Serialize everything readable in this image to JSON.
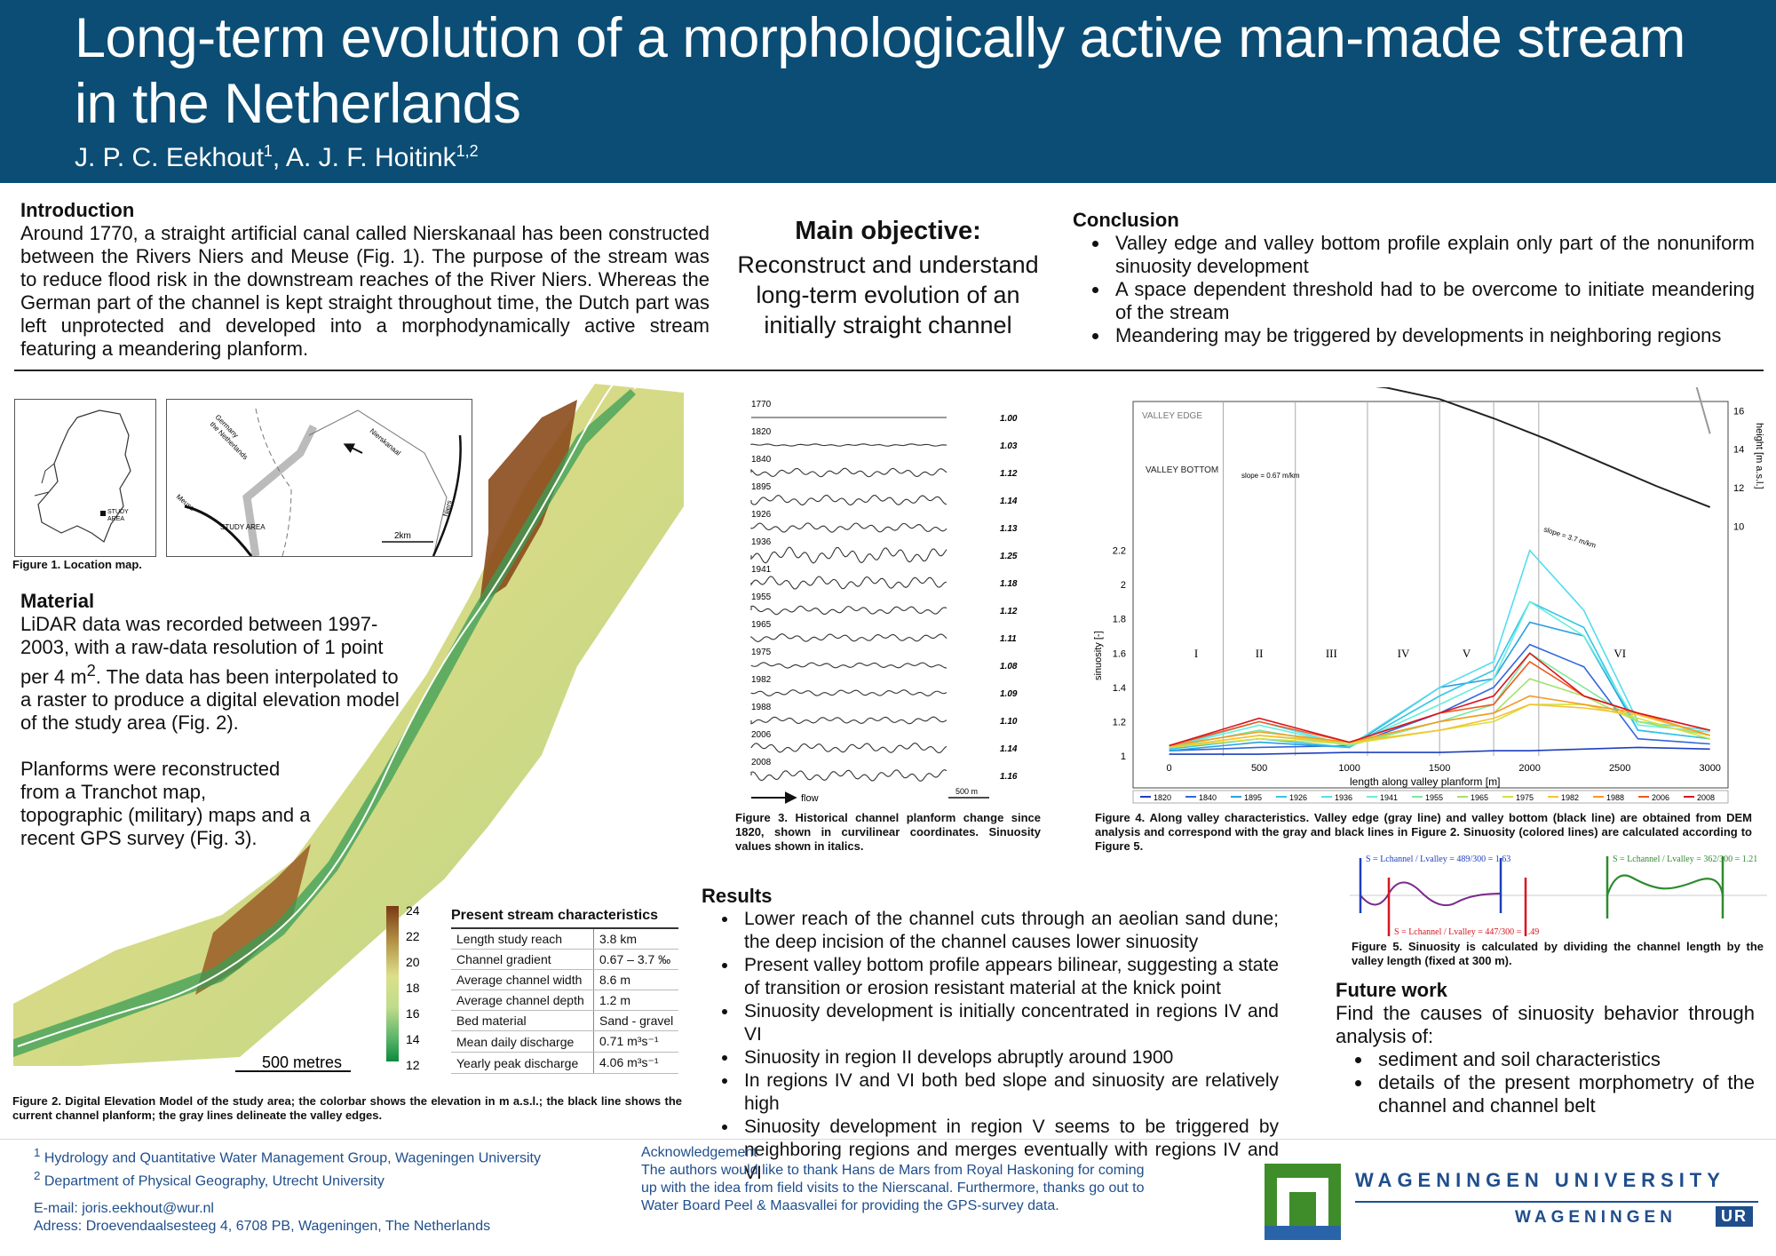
{
  "header": {
    "title_line1": "Long-term evolution of a morphologically active man-made stream",
    "title_line2": "in the Netherlands",
    "author1": "J. P. C. Eekhout",
    "author1_sup": "1",
    "author2": ", A. J. F. Hoitink",
    "author2_sup": "1,2",
    "bg_color": "#0b4d74"
  },
  "introduction": {
    "heading": "Introduction",
    "text": "Around 1770, a straight artificial canal called Nierskanaal has been constructed between the Rivers Niers and Meuse (Fig. 1). The purpose of the stream was to reduce flood risk in the downstream reaches of the River Niers. Whereas the German part of the channel is kept straight throughout time, the Dutch part was left unprotected and developed into a morphodynamically active stream featuring a meandering planform."
  },
  "objective": {
    "heading": "Main objective:",
    "line1": "Reconstruct and understand",
    "line2": "long-term evolution of an",
    "line3": "initially straight channel"
  },
  "conclusion": {
    "heading": "Conclusion",
    "items": [
      "Valley edge and valley bottom profile explain only part of the nonuniform sinuosity development",
      "A space dependent threshold had to be overcome to initiate meandering of the stream",
      "Meandering may be triggered by developments in neighboring regions"
    ]
  },
  "figure1": {
    "caption": "Figure 1. Location map.",
    "study_area": "STUDY AREA",
    "study_area_short": "STUDY",
    "study_area_short2": "AREA",
    "germany": "Germany",
    "netherlands": "the Netherlands",
    "meuse": "Meuse",
    "nierskanaal": "Nierskanaal",
    "niers": "Niers",
    "scale": "2km"
  },
  "material": {
    "heading": "Material",
    "p1_a": "LiDAR data was recorded between 1997-2003, with a raw-data resolution of 1 point per 4 m",
    "p1_sup": "2",
    "p1_b": ". The data has been interpolated to a raster to produce a digital elevation model of the study area (Fig. 2).",
    "p2": "Planforms were reconstructed from a Tranchot map, topographic (military) maps and a recent GPS survey (Fig. 3)."
  },
  "figure2": {
    "caption": "Figure 2. Digital Elevation Model of the study area; the colorbar shows the elevation in m a.s.l.; the black line shows the current channel planform; the gray lines delineate the valley edges.",
    "scale": "500 metres",
    "colorbar_ticks": [
      "24",
      "22",
      "20",
      "18",
      "16",
      "14",
      "12"
    ]
  },
  "stream_table": {
    "title": "Present stream characteristics",
    "rows": [
      {
        "k": "Length study reach",
        "v": "3.8 km"
      },
      {
        "k": "Channel gradient",
        "v": "0.67 – 3.7 ‰"
      },
      {
        "k": "Average channel width",
        "v": "8.6 m"
      },
      {
        "k": "Average channel depth",
        "v": "1.2 m"
      },
      {
        "k": "Bed material",
        "v": "Sand - gravel"
      },
      {
        "k": "Mean daily discharge",
        "v": "0.71 m³s⁻¹"
      },
      {
        "k": "Yearly peak discharge",
        "v": "4.06 m³s⁻¹"
      }
    ]
  },
  "figure3": {
    "caption": "Figure 3. Historical channel planform change since 1820, shown in curvilinear coordinates. Sinuosity values shown in italics.",
    "flow_label": "flow",
    "scale_label": "500 m",
    "rows": [
      {
        "year": "1770",
        "s": "1.00"
      },
      {
        "year": "1820",
        "s": "1.03"
      },
      {
        "year": "1840",
        "s": "1.12"
      },
      {
        "year": "1895",
        "s": "1.14"
      },
      {
        "year": "1926",
        "s": "1.13"
      },
      {
        "year": "1936",
        "s": "1.25"
      },
      {
        "year": "1941",
        "s": "1.18"
      },
      {
        "year": "1955",
        "s": "1.12"
      },
      {
        "year": "1965",
        "s": "1.11"
      },
      {
        "year": "1975",
        "s": "1.08"
      },
      {
        "year": "1982",
        "s": "1.09"
      },
      {
        "year": "1988",
        "s": "1.10"
      },
      {
        "year": "2006",
        "s": "1.14"
      },
      {
        "year": "2008",
        "s": "1.16"
      }
    ]
  },
  "figure4": {
    "caption": "Figure 4. Along valley characteristics. Valley edge (gray line) and valley bottom (black line) are obtained from DEM analysis and correspond with the gray and black lines in Figure 2. Sinuosity (colored lines) are calculated according to Figure 5.",
    "valley_edge": "VALLEY EDGE",
    "valley_bottom": "VALLEY BOTTOM",
    "slope1": "slope = 0.67 m/km",
    "slope2": "slope = 3.7 m/km",
    "ylabel_left": "sinuosity [-]",
    "ylabel_right": "height [m a.s.l.]",
    "xlabel": "length along valley planform [m]",
    "regions": [
      "I",
      "II",
      "III",
      "IV",
      "V",
      "VI"
    ]
  },
  "chart_data": {
    "type": "line",
    "xlabel": "length along valley planform [m]",
    "ylabel": "sinuosity [-]",
    "y2label": "height [m a.s.l.]",
    "xlim": [
      -200,
      3100
    ],
    "ylim": [
      1,
      2.4
    ],
    "y2lim": [
      8,
      22
    ],
    "xticks": [
      "0",
      "500",
      "1000",
      "1500",
      "2000",
      "2500",
      "3000"
    ],
    "yticks": [
      "1",
      "1.2",
      "1.4",
      "1.6",
      "1.8",
      "2",
      "2.2"
    ],
    "y2ticks": [
      "10",
      "12",
      "14",
      "16",
      "18",
      "20",
      "22"
    ],
    "region_bounds": [
      300,
      700,
      1100,
      1500,
      1800,
      2050
    ],
    "region_labels": [
      "I",
      "II",
      "III",
      "IV",
      "V",
      "VI"
    ],
    "region_label_x": [
      150,
      500,
      900,
      1300,
      1650,
      2500
    ],
    "valley_edge": {
      "x": [
        -100,
        200,
        600,
        1000,
        1400,
        1800,
        2200,
        2500,
        2700,
        2850,
        3000
      ],
      "y": [
        19.8,
        19.6,
        19.4,
        19.3,
        19.0,
        18.6,
        18.4,
        18.3,
        18.5,
        19.7,
        14.8
      ]
    },
    "valley_bottom": {
      "x": [
        -100,
        200,
        600,
        900,
        1200,
        1500,
        1800,
        2100,
        2400,
        2700,
        3000
      ],
      "y": [
        17.9,
        17.8,
        17.6,
        17.5,
        17.2,
        16.6,
        15.6,
        14.5,
        13.3,
        12.1,
        11.0
      ]
    },
    "series": [
      {
        "name": "1820",
        "color": "#1f3fbf",
        "x": [
          0,
          500,
          1000,
          1500,
          1800,
          2000,
          2300,
          2600,
          3000
        ],
        "y": [
          1.01,
          1.01,
          1.02,
          1.02,
          1.03,
          1.03,
          1.04,
          1.05,
          1.04
        ]
      },
      {
        "name": "1840",
        "color": "#3366dd",
        "x": [
          0,
          500,
          1000,
          1500,
          1800,
          2000,
          2300,
          2600,
          3000
        ],
        "y": [
          1.03,
          1.05,
          1.06,
          1.25,
          1.4,
          1.65,
          1.52,
          1.1,
          1.07
        ]
      },
      {
        "name": "1895",
        "color": "#2aa0e0",
        "x": [
          0,
          500,
          1000,
          1500,
          1800,
          2000,
          2300,
          2600,
          3000
        ],
        "y": [
          1.03,
          1.08,
          1.05,
          1.4,
          1.45,
          1.78,
          1.7,
          1.15,
          1.1
        ]
      },
      {
        "name": "1926",
        "color": "#33c6e6",
        "x": [
          0,
          500,
          1000,
          1500,
          1800,
          2000,
          2300,
          2600,
          3000
        ],
        "y": [
          1.04,
          1.1,
          1.05,
          1.35,
          1.5,
          1.9,
          1.75,
          1.15,
          1.1
        ]
      },
      {
        "name": "1936",
        "color": "#55ddee",
        "x": [
          0,
          500,
          1000,
          1500,
          1800,
          2000,
          2300,
          2600,
          3000
        ],
        "y": [
          1.05,
          1.2,
          1.06,
          1.4,
          1.55,
          2.2,
          1.85,
          1.2,
          1.15
        ]
      },
      {
        "name": "1941",
        "color": "#66eedd",
        "x": [
          0,
          500,
          1000,
          1500,
          1800,
          2000,
          2300,
          2600,
          3000
        ],
        "y": [
          1.05,
          1.18,
          1.06,
          1.3,
          1.45,
          1.9,
          1.7,
          1.18,
          1.14
        ]
      },
      {
        "name": "1955",
        "color": "#7de8a0",
        "x": [
          0,
          500,
          1000,
          1500,
          1800,
          2000,
          2300,
          2600,
          3000
        ],
        "y": [
          1.05,
          1.15,
          1.06,
          1.2,
          1.3,
          1.6,
          1.4,
          1.2,
          1.12
        ]
      },
      {
        "name": "1965",
        "color": "#a5e06a",
        "x": [
          0,
          500,
          1000,
          1500,
          1800,
          2000,
          2300,
          2600,
          3000
        ],
        "y": [
          1.05,
          1.12,
          1.07,
          1.2,
          1.25,
          1.45,
          1.35,
          1.2,
          1.12
        ]
      },
      {
        "name": "1975",
        "color": "#d6e040",
        "x": [
          0,
          500,
          1000,
          1500,
          1800,
          2000,
          2300,
          2600,
          3000
        ],
        "y": [
          1.05,
          1.1,
          1.07,
          1.15,
          1.2,
          1.3,
          1.3,
          1.22,
          1.1
        ]
      },
      {
        "name": "1982",
        "color": "#f4c430",
        "x": [
          0,
          500,
          1000,
          1500,
          1800,
          2000,
          2300,
          2600,
          3000
        ],
        "y": [
          1.05,
          1.12,
          1.08,
          1.15,
          1.22,
          1.3,
          1.28,
          1.24,
          1.12
        ]
      },
      {
        "name": "1988",
        "color": "#f59a23",
        "x": [
          0,
          500,
          1000,
          1500,
          1800,
          2000,
          2300,
          2600,
          3000
        ],
        "y": [
          1.06,
          1.14,
          1.08,
          1.2,
          1.25,
          1.35,
          1.3,
          1.25,
          1.12
        ]
      },
      {
        "name": "2006",
        "color": "#ef5a1f",
        "x": [
          0,
          500,
          1000,
          1500,
          1800,
          2000,
          2300,
          2600,
          3000
        ],
        "y": [
          1.06,
          1.2,
          1.08,
          1.25,
          1.3,
          1.55,
          1.35,
          1.25,
          1.15
        ]
      },
      {
        "name": "2008",
        "color": "#d9141e",
        "x": [
          0,
          500,
          1000,
          1500,
          1800,
          2000,
          2300,
          2600,
          3000
        ],
        "y": [
          1.06,
          1.22,
          1.08,
          1.25,
          1.35,
          1.6,
          1.35,
          1.25,
          1.15
        ]
      }
    ]
  },
  "figure5": {
    "caption": "Figure 5. Sinuosity is calculated by dividing the channel length by the valley length (fixed at 300 m).",
    "eq1": "S = Lchannel / Lvalley = 489/300 = 1.63",
    "eq2": "S = Lchannel / Lvalley = 447/300 = 1.49",
    "eq3": "S = Lchannel / Lvalley = 362/300 = 1.21"
  },
  "results": {
    "heading": "Results",
    "items": [
      "Lower reach of the channel cuts through an aeolian sand dune; the deep incision of the channel causes lower sinuosity",
      "Present valley bottom profile appears bilinear, suggesting a state of transition or erosion resistant material at the knick point",
      "Sinuosity development is initially concentrated in regions IV and VI",
      "Sinuosity in region II develops abruptly around 1900",
      "In regions IV and VI both bed slope and sinuosity are relatively high",
      "Sinuosity development in region V seems to be triggered by neighboring regions and merges eventually with regions IV and VI"
    ]
  },
  "future": {
    "heading": "Future work",
    "text": "Find the causes of sinuosity behavior through analysis of:",
    "items": [
      "sediment and soil characteristics",
      "details of the present morphometry of the channel and channel belt"
    ]
  },
  "footer": {
    "aff1_sup": "1",
    "aff1": "Hydrology and Quantitative Water Management Group, Wageningen University",
    "aff2_sup": "2",
    "aff2": "Department of Physical Geography, Utrecht University",
    "email": "E-mail: joris.eekhout@wur.nl",
    "address": "Adress: Droevendaalsesteeg 4, 6708 PB, Wageningen, The Netherlands",
    "ack_heading": "Acknowledgement",
    "ack_text": "The authors would like to thank Hans de Mars from Royal Haskoning for coming up with the idea from field visits to the Nierscanal. Furthermore, thanks go out to Water Board Peel & Maasvallei for providing the GPS-survey data.",
    "logo_line1": "WAGENINGEN UNIVERSITY",
    "logo_line2a": "WAGENINGEN",
    "logo_line2b": "UR"
  }
}
